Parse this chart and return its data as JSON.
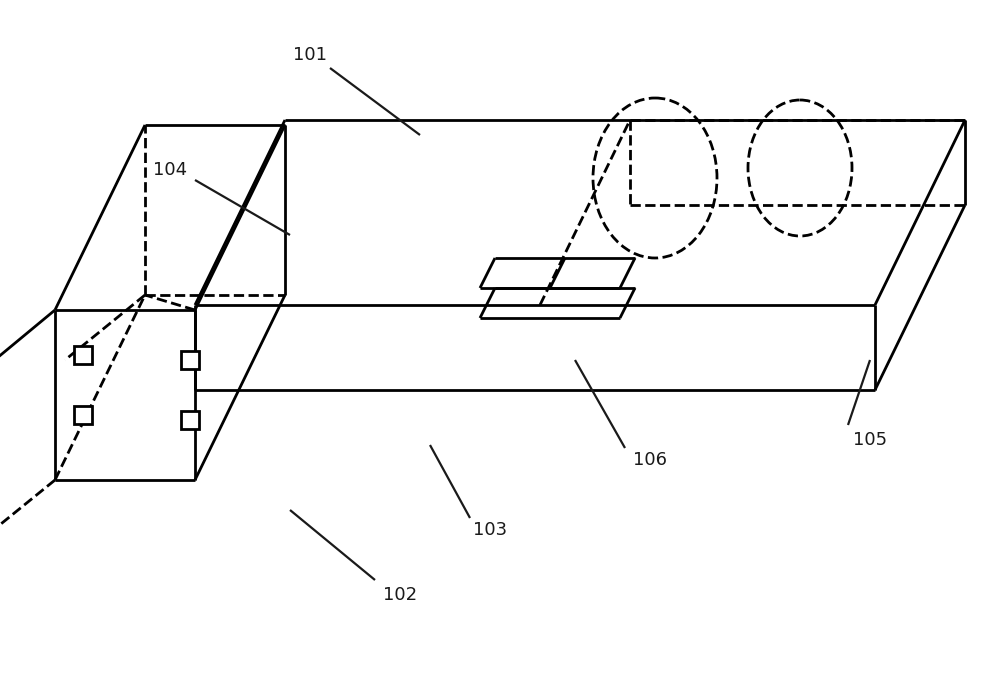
{
  "background_color": "#ffffff",
  "line_color": "#000000",
  "lw": 2.0,
  "fig_width": 10.0,
  "fig_height": 6.92,
  "label_fontsize": 13
}
